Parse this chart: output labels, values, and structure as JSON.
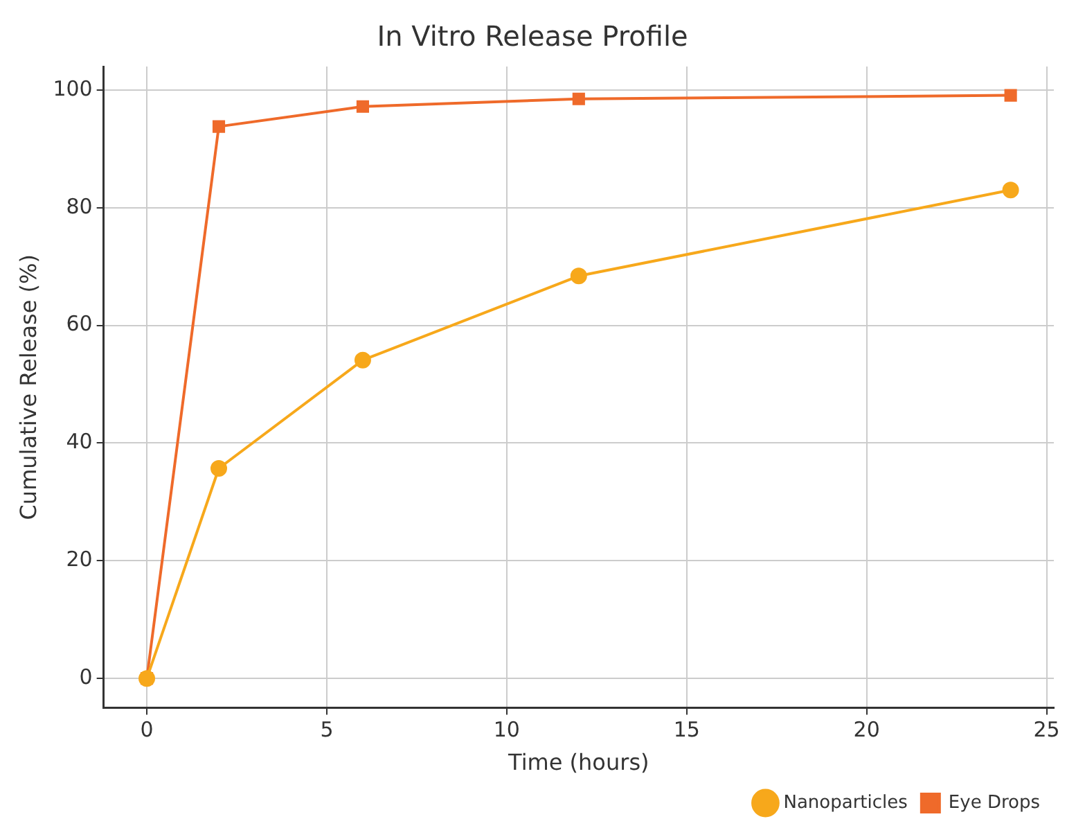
{
  "chart_data": {
    "type": "line",
    "title": "In Vitro Release Profile",
    "xlabel": "Time (hours)",
    "ylabel": "Cumulative Release (%)",
    "x": [
      0,
      2,
      6,
      12,
      24
    ],
    "series": [
      {
        "name": "Nanoparticles",
        "color": "#f7a81b",
        "values": [
          0,
          35.7,
          54.1,
          68.4,
          83.0
        ],
        "marker": "circle"
      },
      {
        "name": "Eye Drops",
        "color": "#ef6a2a",
        "values": [
          0,
          93.8,
          97.2,
          98.5,
          99.1
        ],
        "marker": "square"
      }
    ],
    "xlim": [
      -1.2,
      25.2
    ],
    "ylim": [
      -5,
      104
    ],
    "xticks": [
      0,
      5,
      10,
      15,
      20,
      25
    ],
    "yticks": [
      0,
      20,
      40,
      60,
      80,
      100
    ],
    "grid": true,
    "legend": "bottom right",
    "line_style": "solid"
  }
}
